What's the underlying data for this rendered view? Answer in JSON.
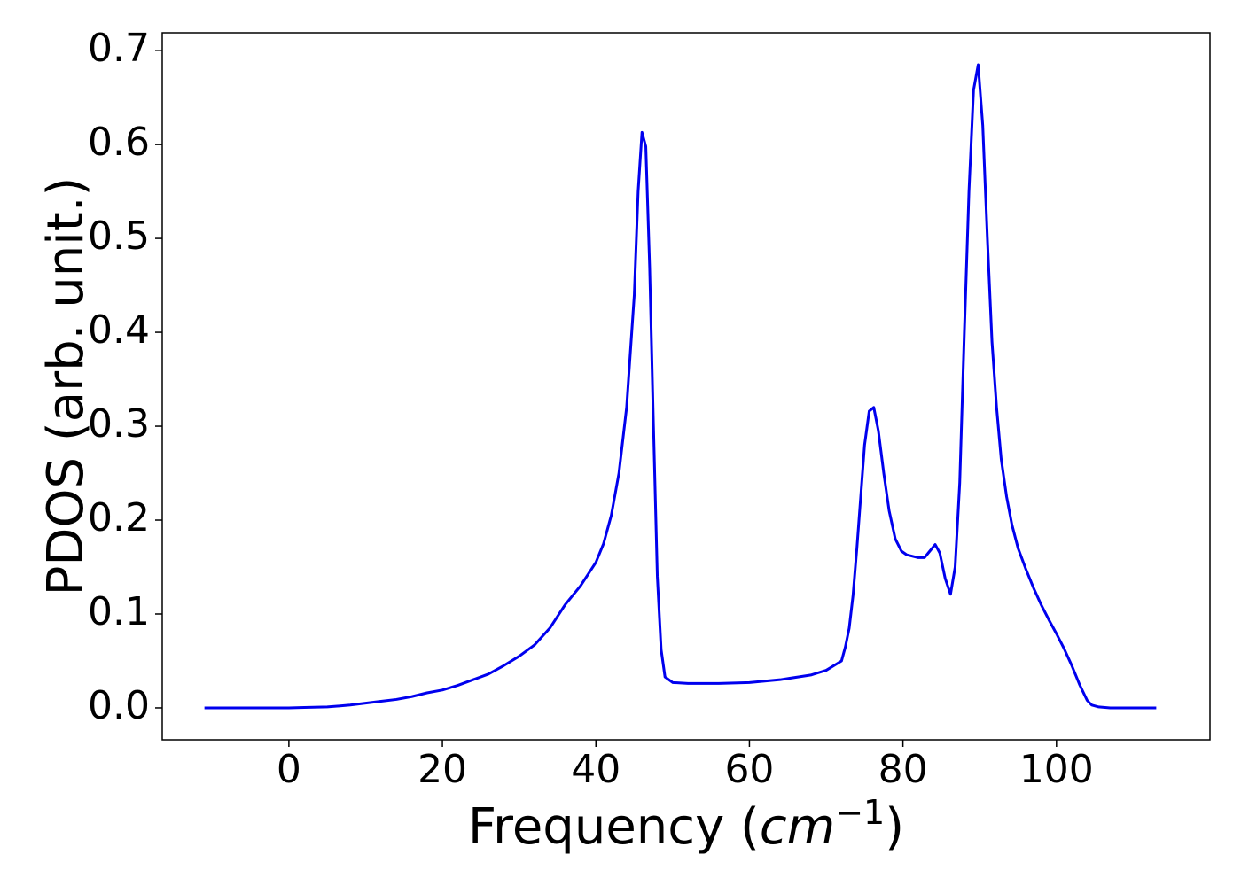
{
  "chart_data": {
    "type": "line",
    "x_label": {
      "text": "Frequency (",
      "unit": "cm",
      "exponent": "−1",
      "close": ")"
    },
    "y_label": "PDOS (arb. unit.)",
    "series": [
      {
        "color": "#0000ee",
        "x": [
          -11,
          0,
          2,
          5,
          8,
          10,
          12,
          14,
          16,
          18,
          20,
          22,
          24,
          26,
          28,
          30,
          32,
          34,
          36,
          38,
          40,
          41,
          42,
          43,
          44,
          45,
          45.5,
          46,
          46.5,
          47,
          47.5,
          48,
          48.5,
          49,
          50,
          52,
          56,
          60,
          64,
          68,
          70,
          72,
          72.5,
          73,
          73.5,
          74,
          75,
          75.6,
          76.2,
          76.8,
          77.5,
          78.2,
          79,
          79.8,
          80.5,
          82,
          82.8,
          83.5,
          84.2,
          84.8,
          85.5,
          86.2,
          86.8,
          87.4,
          88,
          88.6,
          89.2,
          89.8,
          90.4,
          91,
          91.6,
          92.2,
          92.8,
          93.5,
          94.2,
          95,
          96,
          97,
          98,
          99,
          100,
          101,
          102,
          103,
          104,
          104.6,
          105.5,
          107,
          113
        ],
        "values": [
          0,
          0,
          0.0005,
          0.001,
          0.003,
          0.005,
          0.007,
          0.009,
          0.012,
          0.016,
          0.019,
          0.024,
          0.03,
          0.036,
          0.045,
          0.055,
          0.067,
          0.085,
          0.11,
          0.13,
          0.155,
          0.175,
          0.205,
          0.25,
          0.32,
          0.44,
          0.55,
          0.613,
          0.598,
          0.47,
          0.3,
          0.14,
          0.062,
          0.033,
          0.027,
          0.026,
          0.026,
          0.027,
          0.03,
          0.035,
          0.04,
          0.05,
          0.065,
          0.085,
          0.12,
          0.17,
          0.28,
          0.316,
          0.32,
          0.295,
          0.25,
          0.21,
          0.18,
          0.167,
          0.163,
          0.16,
          0.16,
          0.167,
          0.174,
          0.165,
          0.138,
          0.121,
          0.15,
          0.24,
          0.4,
          0.55,
          0.658,
          0.685,
          0.62,
          0.5,
          0.39,
          0.32,
          0.265,
          0.225,
          0.195,
          0.17,
          0.148,
          0.128,
          0.11,
          0.094,
          0.079,
          0.063,
          0.045,
          0.025,
          0.008,
          0.003,
          0.001,
          0,
          0
        ]
      }
    ],
    "xlim": [
      -16.5,
      120
    ],
    "xticks": [
      0,
      20,
      40,
      60,
      80,
      100
    ],
    "ylim": [
      -0.034,
      0.719
    ],
    "yticks": [
      {
        "value": 0,
        "label": "0.0"
      },
      0.1,
      0.2,
      0.3,
      0.4,
      0.5,
      0.6,
      0.7
    ],
    "grid": false
  }
}
